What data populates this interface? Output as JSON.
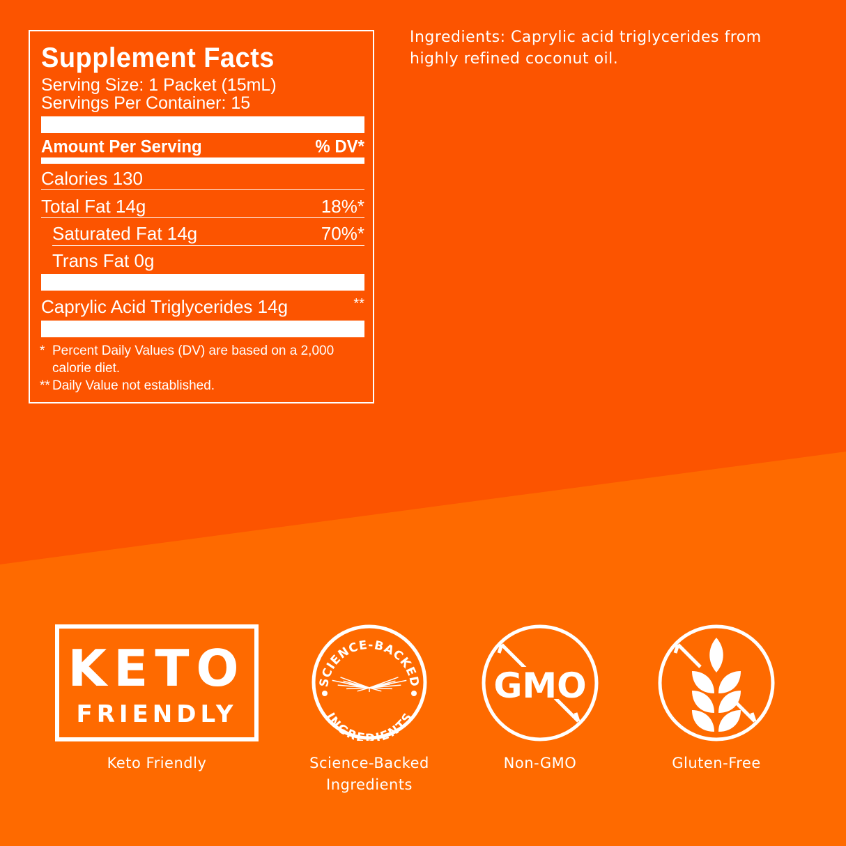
{
  "colors": {
    "top_background": "#fc5400",
    "bottom_background": "#fe6a00",
    "foreground": "#ffffff"
  },
  "facts": {
    "title": "Supplement Facts",
    "serving_size": "Serving Size: 1 Packet (15mL)",
    "servings_per_container": "Servings Per Container: 15",
    "amount_header": "Amount Per Serving",
    "dv_header": "% DV*",
    "rows": [
      {
        "label": "Calories 130",
        "dv": ""
      },
      {
        "label": "Total Fat 14g",
        "dv": "18%*"
      },
      {
        "label": "Saturated Fat 14g",
        "dv": "70%*"
      },
      {
        "label": "Trans Fat 0g",
        "dv": ""
      },
      {
        "label": "Caprylic Acid Triglycerides 14g",
        "dv": "**"
      }
    ],
    "footnote1_mark": "*",
    "footnote1_line1": "Percent Daily Values (DV) are based on a 2,000",
    "footnote1_line2": "calorie diet.",
    "footnote2_mark": "**",
    "footnote2": "Daily Value not established."
  },
  "ingredients": {
    "line1": "Ingredients: Caprylic acid triglycerides from",
    "line2": "highly refined coconut oil."
  },
  "badges": [
    {
      "icon": "keto-friendly-logo",
      "logo_text": [
        "KETO",
        "FRIENDLY"
      ],
      "label": "Keto Friendly"
    },
    {
      "icon": "science-backed-seal",
      "seal_top": "SCIENCE-BACKED",
      "seal_bottom": "INGREDIENTS",
      "label_line1": "Science-Backed",
      "label_line2": "Ingredients"
    },
    {
      "icon": "no-gmo-icon",
      "logo_text": "GMO",
      "label": "Non-GMO"
    },
    {
      "icon": "no-wheat-icon",
      "label": "Gluten-Free"
    }
  ]
}
